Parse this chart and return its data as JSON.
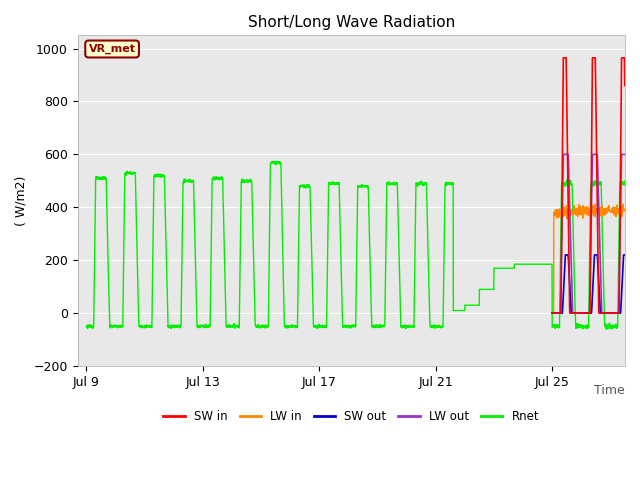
{
  "title": "Short/Long Wave Radiation",
  "ylabel": "( W/m2)",
  "xlabel": "Time",
  "ylim": [
    -200,
    1050
  ],
  "xlim_start": -0.3,
  "xlim_end": 18.5,
  "background_color": "#ffffff",
  "plot_bg_color": "#e8e8e8",
  "annotation_text": "VR_met",
  "annotation_bg": "#ffffcc",
  "annotation_border": "#8B0000",
  "xtick_labels": [
    "Jul 9",
    "Jul 13",
    "Jul 17",
    "Jul 21",
    "Jul 25"
  ],
  "xtick_positions": [
    0,
    4,
    8,
    12,
    16
  ],
  "legend_entries": [
    "SW in",
    "LW in",
    "SW out",
    "LW out",
    "Rnet"
  ],
  "legend_colors": [
    "#ff0000",
    "#ff8800",
    "#0000cc",
    "#9933cc",
    "#00ee00"
  ],
  "title_fontsize": 11,
  "axis_fontsize": 9,
  "tick_fontsize": 9
}
